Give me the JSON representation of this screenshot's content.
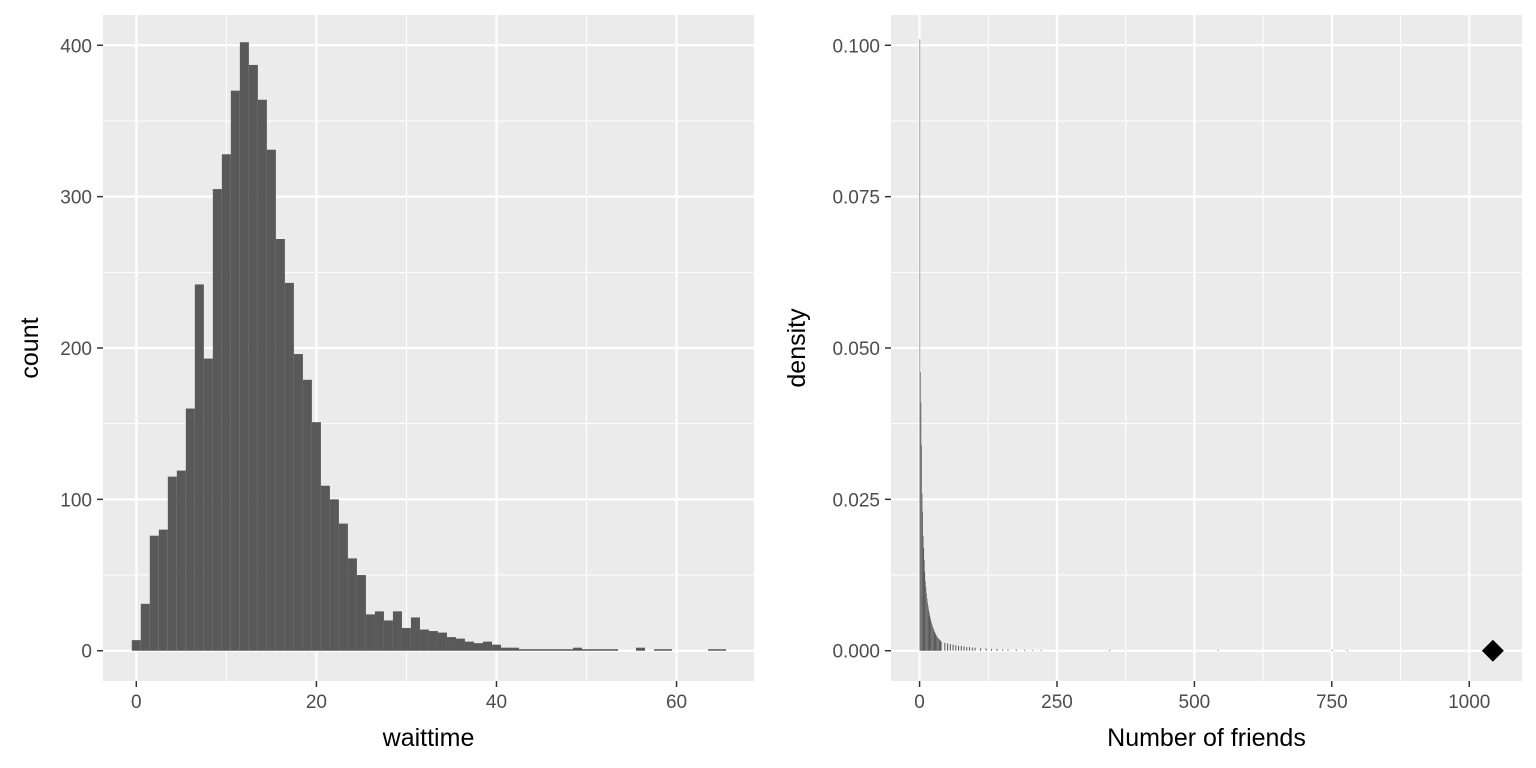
{
  "chart_data": [
    {
      "type": "bar",
      "subtype": "histogram",
      "xlabel": "waittime",
      "ylabel": "count",
      "xlim": [
        -3.7,
        68.6
      ],
      "ylim": [
        -20,
        420
      ],
      "x_ticks": [
        0,
        20,
        40,
        60
      ],
      "x_tick_labels": [
        "0",
        "20",
        "40",
        "60"
      ],
      "y_ticks": [
        0,
        100,
        200,
        300,
        400
      ],
      "y_tick_labels": [
        "0",
        "100",
        "200",
        "300",
        "400"
      ],
      "grid": true,
      "bin_width": 1,
      "bin_start": -0.5,
      "values": [
        7,
        31,
        76,
        80,
        115,
        119,
        160,
        242,
        193,
        305,
        328,
        370,
        402,
        387,
        364,
        331,
        272,
        243,
        196,
        179,
        151,
        109,
        100,
        84,
        61,
        50,
        24,
        26,
        20,
        26,
        15,
        22,
        14,
        13,
        12,
        9,
        8,
        6,
        5,
        6,
        4,
        2,
        2,
        1,
        1,
        1,
        1,
        1,
        1,
        2,
        1,
        1,
        1,
        1,
        0,
        0,
        2,
        0,
        1,
        1,
        0,
        0,
        0,
        0,
        1,
        1,
        0
      ]
    },
    {
      "type": "bar",
      "subtype": "histogram",
      "xlabel": "Number of friends",
      "ylabel": "density",
      "xlim": [
        -52,
        1096
      ],
      "ylim": [
        -0.005,
        0.105
      ],
      "x_ticks": [
        0,
        250,
        500,
        750,
        1000
      ],
      "x_tick_labels": [
        "0",
        "250",
        "500",
        "750",
        "1000"
      ],
      "y_ticks": [
        0,
        0.025,
        0.05,
        0.075,
        0.1
      ],
      "y_tick_labels": [
        "0.000",
        "0.025",
        "0.050",
        "0.075",
        "0.100"
      ],
      "grid": true,
      "bin_width": 1,
      "bin_start": 0,
      "values": [
        0.101,
        0.046,
        0.041,
        0.034,
        0.026,
        0.023,
        0.019,
        0.017,
        0.015,
        0.013,
        0.0115,
        0.0105,
        0.0095,
        0.0087,
        0.008,
        0.0074,
        0.0068,
        0.0063,
        0.0058,
        0.0054,
        0.005,
        0.0047,
        0.0044,
        0.0041,
        0.0038,
        0.0036,
        0.0033,
        0.0031,
        0.0029,
        0.0027,
        0.0025,
        0.0024,
        0.0022,
        0.0021,
        0.002,
        0.0019,
        0.0018,
        0.0017,
        0.0016,
        0.0015
      ],
      "tail_bars": [
        {
          "x": 45,
          "y": 0.0013
        },
        {
          "x": 50,
          "y": 0.0012
        },
        {
          "x": 55,
          "y": 0.0011
        },
        {
          "x": 60,
          "y": 0.001
        },
        {
          "x": 65,
          "y": 0.0009
        },
        {
          "x": 70,
          "y": 0.0008
        },
        {
          "x": 75,
          "y": 0.0008
        },
        {
          "x": 80,
          "y": 0.0007
        },
        {
          "x": 85,
          "y": 0.0006
        },
        {
          "x": 90,
          "y": 0.0006
        },
        {
          "x": 95,
          "y": 0.0005
        },
        {
          "x": 100,
          "y": 0.0005
        },
        {
          "x": 110,
          "y": 0.0004
        },
        {
          "x": 120,
          "y": 0.0004
        },
        {
          "x": 130,
          "y": 0.0003
        },
        {
          "x": 140,
          "y": 0.0003
        },
        {
          "x": 150,
          "y": 0.0002
        },
        {
          "x": 160,
          "y": 0.0002
        },
        {
          "x": 175,
          "y": 0.0002
        },
        {
          "x": 190,
          "y": 0.0001
        },
        {
          "x": 205,
          "y": 0.0001
        },
        {
          "x": 220,
          "y": 0.0001
        },
        {
          "x": 345,
          "y": 0.0001
        },
        {
          "x": 542,
          "y": 0.0001
        },
        {
          "x": 750,
          "y": 0.0001
        },
        {
          "x": 777,
          "y": 0.0001
        }
      ],
      "marker": {
        "shape": "diamond",
        "x": 1043,
        "y": 0
      }
    }
  ],
  "colors": {
    "panel_background": "#ebebeb",
    "grid": "#ffffff",
    "bar_fill": "#595959",
    "tick_mark": "#333333",
    "marker": "#000000"
  }
}
